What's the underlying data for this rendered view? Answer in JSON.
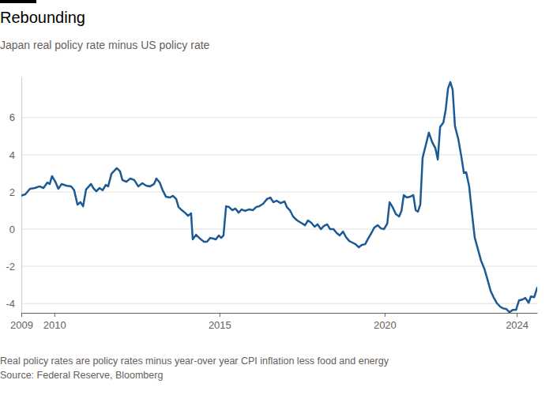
{
  "chart_data": {
    "type": "line",
    "title": "Rebounding",
    "subtitle": "Japan real policy rate minus US policy rate",
    "note": "Real policy rates are policy rates minus year-over year CPI inflation less food and energy",
    "source": "Source: Federal Reserve, Bloomberg",
    "color": "#1c5a96",
    "grid": true,
    "xlim": [
      2009,
      2024.62
    ],
    "xticks": [
      2009,
      2010,
      2015,
      2020,
      2024
    ],
    "ylim": [
      -4.5,
      8.2
    ],
    "yticks": [
      -4,
      -2,
      0,
      2,
      4,
      6
    ],
    "x": [
      2009.0,
      2009.12,
      2009.26,
      2009.41,
      2009.55,
      2009.67,
      2009.79,
      2009.86,
      2009.93,
      2010.03,
      2010.12,
      2010.22,
      2010.36,
      2010.51,
      2010.6,
      2010.7,
      2010.79,
      2010.87,
      2010.96,
      2011.11,
      2011.18,
      2011.27,
      2011.37,
      2011.46,
      2011.56,
      2011.63,
      2011.73,
      2011.89,
      2011.99,
      2012.06,
      2012.18,
      2012.3,
      2012.42,
      2012.54,
      2012.66,
      2012.78,
      2012.9,
      2013.02,
      2013.09,
      2013.19,
      2013.28,
      2013.38,
      2013.5,
      2013.59,
      2013.69,
      2013.76,
      2013.86,
      2013.95,
      2014.05,
      2014.14,
      2014.19,
      2014.29,
      2014.41,
      2014.53,
      2014.62,
      2014.72,
      2014.81,
      2014.89,
      2014.98,
      2015.05,
      2015.12,
      2015.2,
      2015.29,
      2015.39,
      2015.48,
      2015.58,
      2015.67,
      2015.77,
      2015.89,
      2016.01,
      2016.11,
      2016.2,
      2016.32,
      2016.44,
      2016.54,
      2016.63,
      2016.73,
      2016.85,
      2016.97,
      2017.04,
      2017.13,
      2017.23,
      2017.35,
      2017.47,
      2017.59,
      2017.68,
      2017.78,
      2017.88,
      2017.97,
      2018.07,
      2018.16,
      2018.26,
      2018.35,
      2018.45,
      2018.55,
      2018.64,
      2018.74,
      2018.83,
      2018.93,
      2019.02,
      2019.12,
      2019.22,
      2019.31,
      2019.41,
      2019.5,
      2019.6,
      2019.69,
      2019.79,
      2019.89,
      2019.98,
      2020.08,
      2020.15,
      2020.24,
      2020.34,
      2020.44,
      2020.51,
      2020.58,
      2020.67,
      2020.77,
      2020.87,
      2020.94,
      2021.01,
      2021.08,
      2021.15,
      2021.25,
      2021.34,
      2021.44,
      2021.54,
      2021.61,
      2021.68,
      2021.78,
      2021.85,
      2021.92,
      2021.99,
      2022.06,
      2022.13,
      2022.23,
      2022.33,
      2022.4,
      2022.47,
      2022.56,
      2022.64,
      2022.73,
      2022.83,
      2022.92,
      2023.02,
      2023.11,
      2023.21,
      2023.31,
      2023.4,
      2023.5,
      2023.59,
      2023.69,
      2023.78,
      2023.88,
      2023.98,
      2024.07,
      2024.17,
      2024.26,
      2024.36,
      2024.43,
      2024.53,
      2024.62
    ],
    "values": [
      1.8,
      1.87,
      2.17,
      2.21,
      2.3,
      2.21,
      2.51,
      2.43,
      2.85,
      2.55,
      2.17,
      2.43,
      2.34,
      2.3,
      2.09,
      1.32,
      1.45,
      1.23,
      2.13,
      2.43,
      2.21,
      2.04,
      2.21,
      2.09,
      2.38,
      2.3,
      2.98,
      3.28,
      3.11,
      2.64,
      2.55,
      2.72,
      2.64,
      2.3,
      2.47,
      2.34,
      2.3,
      2.43,
      2.72,
      2.51,
      2.09,
      1.74,
      1.7,
      1.79,
      1.62,
      1.19,
      1.02,
      0.89,
      0.72,
      0.85,
      -0.55,
      -0.3,
      -0.51,
      -0.68,
      -0.68,
      -0.47,
      -0.51,
      -0.55,
      -0.34,
      -0.47,
      -0.34,
      1.23,
      1.19,
      1.02,
      1.11,
      0.89,
      1.06,
      0.98,
      1.06,
      1.02,
      1.19,
      1.23,
      1.36,
      1.62,
      1.7,
      1.45,
      1.53,
      1.4,
      1.49,
      1.19,
      1.02,
      0.68,
      0.47,
      0.34,
      0.21,
      0.47,
      0.34,
      0.13,
      0.26,
      0,
      0.17,
      0.26,
      0,
      0,
      -0.21,
      -0.34,
      -0.13,
      -0.43,
      -0.64,
      -0.72,
      -0.81,
      -0.98,
      -0.85,
      -0.81,
      -0.51,
      -0.21,
      0.09,
      0.21,
      0.04,
      0,
      0.3,
      1.45,
      1.19,
      0.81,
      0.68,
      0.98,
      1.83,
      1.7,
      1.74,
      1.83,
      1.02,
      0.94,
      1.32,
      3.83,
      4.55,
      5.19,
      4.68,
      4.34,
      3.74,
      5.49,
      5.74,
      6.43,
      7.57,
      7.91,
      7.49,
      5.53,
      4.85,
      3.83,
      3.02,
      3.06,
      2.3,
      0.94,
      -0.47,
      -1.11,
      -1.7,
      -2.13,
      -2.68,
      -3.32,
      -3.7,
      -3.98,
      -4.17,
      -4.26,
      -4.3,
      -4.47,
      -4.34,
      -4.34,
      -3.83,
      -3.79,
      -3.7,
      -3.96,
      -3.62,
      -3.66,
      -3.15
    ]
  }
}
